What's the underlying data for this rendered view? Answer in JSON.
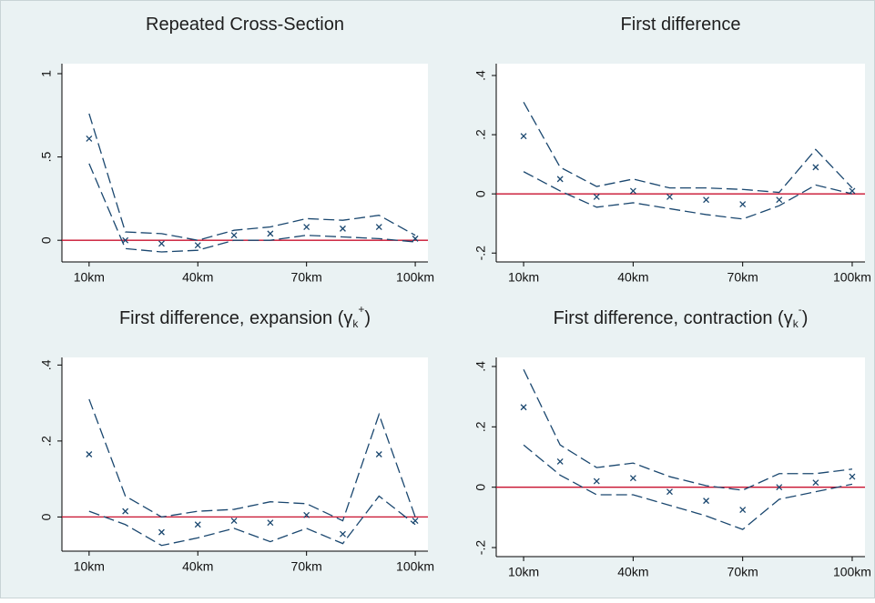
{
  "chart_data": [
    {
      "type": "line",
      "title": "Repeated Cross-Section",
      "x": [
        10,
        20,
        30,
        40,
        50,
        60,
        70,
        80,
        90,
        100
      ],
      "series": [
        {
          "style": "x-marker",
          "color": "#1a476f",
          "values": [
            0.61,
            0.0,
            -0.02,
            -0.03,
            0.03,
            0.04,
            0.08,
            0.07,
            0.08,
            0.01
          ]
        },
        {
          "style": "dashed",
          "color": "#1a476f",
          "values": [
            0.76,
            0.05,
            0.04,
            0.0,
            0.06,
            0.08,
            0.13,
            0.12,
            0.15,
            0.03
          ]
        },
        {
          "style": "dashed",
          "color": "#1a476f",
          "values": [
            0.46,
            -0.05,
            -0.07,
            -0.06,
            0.0,
            0.0,
            0.03,
            0.02,
            0.01,
            -0.01
          ]
        }
      ],
      "xlim": [
        2.5,
        103.5
      ],
      "xticks": [
        {
          "value": 10,
          "label": "10km"
        },
        {
          "value": 40,
          "label": "40km"
        },
        {
          "value": 70,
          "label": "70km"
        },
        {
          "value": 100,
          "label": "100km"
        }
      ],
      "ylim": [
        -0.13,
        1.06
      ],
      "yticks": [
        0,
        {
          "value": 0.5,
          "label": ".5"
        },
        1
      ],
      "refline": 0,
      "refline_color": "#c8102e"
    },
    {
      "type": "line",
      "title": "First difference",
      "x": [
        10,
        20,
        30,
        40,
        50,
        60,
        70,
        80,
        90,
        100
      ],
      "series": [
        {
          "style": "x-marker",
          "color": "#1a476f",
          "values": [
            0.195,
            0.05,
            -0.01,
            0.01,
            -0.01,
            -0.02,
            -0.035,
            -0.02,
            0.09,
            0.01
          ]
        },
        {
          "style": "dashed",
          "color": "#1a476f",
          "values": [
            0.31,
            0.09,
            0.025,
            0.05,
            0.02,
            0.02,
            0.015,
            0.005,
            0.15,
            0.02
          ]
        },
        {
          "style": "dashed",
          "color": "#1a476f",
          "values": [
            0.075,
            0.01,
            -0.045,
            -0.03,
            -0.05,
            -0.07,
            -0.085,
            -0.04,
            0.03,
            0.0
          ]
        }
      ],
      "xlim": [
        2.5,
        103.5
      ],
      "xticks": [
        {
          "value": 10,
          "label": "10km"
        },
        {
          "value": 40,
          "label": "40km"
        },
        {
          "value": 70,
          "label": "70km"
        },
        {
          "value": 100,
          "label": "100km"
        }
      ],
      "ylim": [
        -0.23,
        0.44
      ],
      "yticks": [
        {
          "value": -0.2,
          "label": "-.2"
        },
        0,
        {
          "value": 0.2,
          "label": ".2"
        },
        {
          "value": 0.4,
          "label": ".4"
        }
      ],
      "refline": 0,
      "refline_color": "#c8102e"
    },
    {
      "type": "line",
      "title": "First difference, expansion (γ",
      "title_sub": "k",
      "title_sup": "+",
      "title_end": ")",
      "x": [
        10,
        20,
        30,
        40,
        50,
        60,
        70,
        80,
        90,
        100
      ],
      "series": [
        {
          "style": "x-marker",
          "color": "#1a476f",
          "values": [
            0.165,
            0.015,
            -0.04,
            -0.02,
            -0.01,
            -0.015,
            0.005,
            -0.045,
            0.165,
            -0.01
          ]
        },
        {
          "style": "dashed",
          "color": "#1a476f",
          "values": [
            0.31,
            0.055,
            0.0,
            0.015,
            0.02,
            0.04,
            0.035,
            -0.01,
            0.27,
            0.0
          ]
        },
        {
          "style": "dashed",
          "color": "#1a476f",
          "values": [
            0.015,
            -0.02,
            -0.075,
            -0.055,
            -0.03,
            -0.065,
            -0.03,
            -0.07,
            0.055,
            -0.02
          ]
        }
      ],
      "xlim": [
        2.5,
        103.5
      ],
      "xticks": [
        {
          "value": 10,
          "label": "10km"
        },
        {
          "value": 40,
          "label": "40km"
        },
        {
          "value": 70,
          "label": "70km"
        },
        {
          "value": 100,
          "label": "100km"
        }
      ],
      "ylim": [
        -0.09,
        0.42
      ],
      "yticks": [
        0,
        {
          "value": 0.2,
          "label": ".2"
        },
        {
          "value": 0.4,
          "label": ".4"
        }
      ],
      "refline": 0,
      "refline_color": "#c8102e"
    },
    {
      "type": "line",
      "title": "First difference, contraction (γ",
      "title_sub": "k",
      "title_sup": "-",
      "title_end": ")",
      "x": [
        10,
        20,
        30,
        40,
        50,
        60,
        70,
        80,
        90,
        100
      ],
      "series": [
        {
          "style": "x-marker",
          "color": "#1a476f",
          "values": [
            0.265,
            0.085,
            0.02,
            0.03,
            -0.015,
            -0.045,
            -0.075,
            0.0,
            0.015,
            0.035
          ]
        },
        {
          "style": "dashed",
          "color": "#1a476f",
          "values": [
            0.39,
            0.14,
            0.065,
            0.08,
            0.035,
            0.005,
            -0.01,
            0.045,
            0.045,
            0.06
          ]
        },
        {
          "style": "dashed",
          "color": "#1a476f",
          "values": [
            0.14,
            0.04,
            -0.025,
            -0.025,
            -0.06,
            -0.095,
            -0.14,
            -0.04,
            -0.015,
            0.01
          ]
        }
      ],
      "xlim": [
        2.5,
        103.5
      ],
      "xticks": [
        {
          "value": 10,
          "label": "10km"
        },
        {
          "value": 40,
          "label": "40km"
        },
        {
          "value": 70,
          "label": "70km"
        },
        {
          "value": 100,
          "label": "100km"
        }
      ],
      "ylim": [
        -0.23,
        0.43
      ],
      "yticks": [
        {
          "value": -0.2,
          "label": "-.2"
        },
        0,
        {
          "value": 0.2,
          "label": ".2"
        },
        {
          "value": 0.4,
          "label": ".4"
        }
      ],
      "refline": 0,
      "refline_color": "#c8102e"
    }
  ]
}
